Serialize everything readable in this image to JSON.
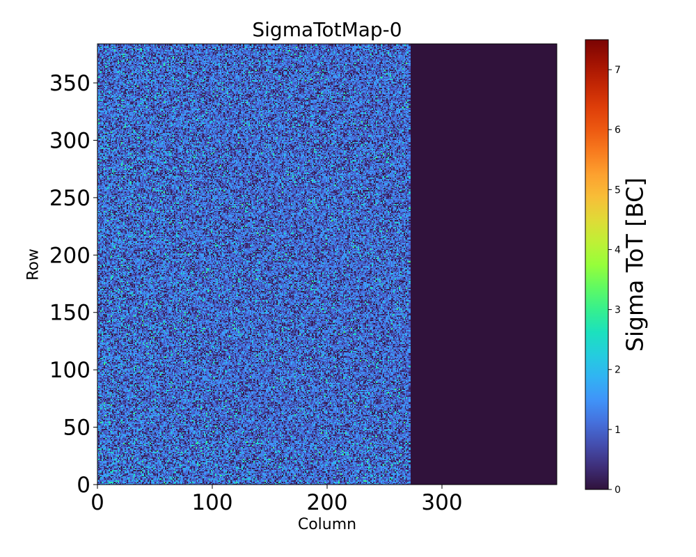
{
  "chart_data": {
    "type": "heatmap",
    "title": "SigmaTotMap-0",
    "xlabel": "Column",
    "ylabel": "Row",
    "xlim": [
      0,
      400
    ],
    "ylim": [
      0,
      384
    ],
    "xticks": [
      0,
      100,
      200,
      300
    ],
    "yticks": [
      0,
      50,
      100,
      150,
      200,
      250,
      300,
      350
    ],
    "active_columns": [
      0,
      272
    ],
    "inactive_value": 0,
    "colorbar": {
      "label": "Sigma ToT [BC]",
      "colormap": "turbo",
      "range": [
        0,
        7.5
      ],
      "ticks": [
        0,
        1,
        2,
        3,
        4,
        5,
        6,
        7
      ]
    },
    "typical_value_range": [
      0,
      3.5
    ],
    "background_color": "#30123b"
  }
}
